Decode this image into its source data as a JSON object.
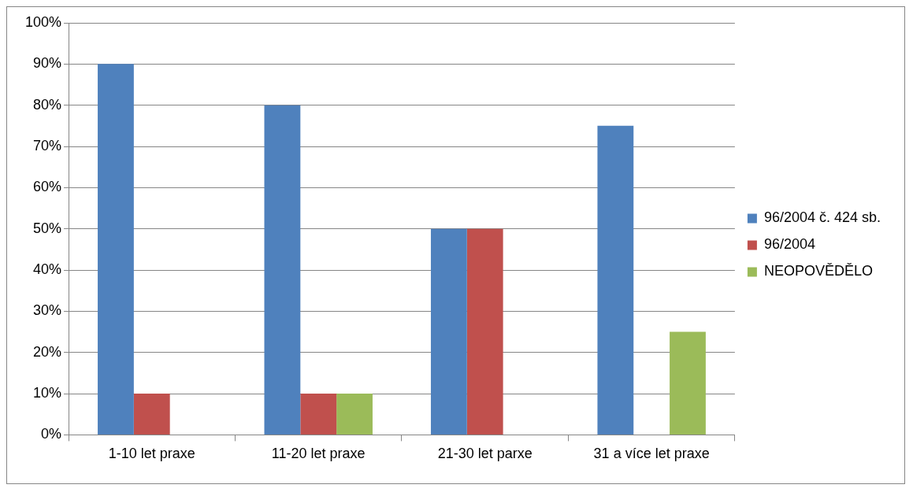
{
  "chart_data": {
    "type": "bar",
    "categories": [
      "1-10 let praxe",
      "11-20 let praxe",
      "21-30 let parxe",
      "31 a více let praxe"
    ],
    "series": [
      {
        "name": "96/2004 č. 424 sb.",
        "color": "#4f81bd",
        "values": [
          90,
          80,
          50,
          75
        ]
      },
      {
        "name": "96/2004",
        "color": "#c0504d",
        "values": [
          10,
          10,
          50,
          0
        ]
      },
      {
        "name": "NEOPOVĚDĚLO",
        "color": "#9bbb59",
        "values": [
          0,
          10,
          0,
          25
        ]
      }
    ],
    "ylim": [
      0,
      100
    ],
    "yticks": [
      {
        "value": 0,
        "label": "0%"
      },
      {
        "value": 10,
        "label": "10%"
      },
      {
        "value": 20,
        "label": "20%"
      },
      {
        "value": 30,
        "label": "30%"
      },
      {
        "value": 40,
        "label": "40%"
      },
      {
        "value": 50,
        "label": "50%"
      },
      {
        "value": 60,
        "label": "60%"
      },
      {
        "value": 70,
        "label": "70%"
      },
      {
        "value": 80,
        "label": "80%"
      },
      {
        "value": 90,
        "label": "90%"
      },
      {
        "value": 100,
        "label": "100%"
      }
    ],
    "grid": "y",
    "legend": "right"
  }
}
